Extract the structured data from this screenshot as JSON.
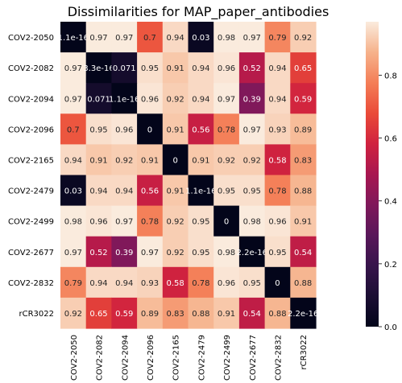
{
  "chart_data": {
    "type": "heatmap",
    "title": "Dissimilarities for MAP_paper_antibodies",
    "row_labels": [
      "COV2-2050",
      "COV2-2082",
      "COV2-2094",
      "COV2-2096",
      "COV2-2165",
      "COV2-2479",
      "COV2-2499",
      "COV2-2677",
      "COV2-2832",
      "rCR3022"
    ],
    "col_labels": [
      "COV2-2050",
      "COV2-2082",
      "COV2-2094",
      "COV2-2096",
      "COV2-2165",
      "COV2-2479",
      "COV2-2499",
      "COV2-2677",
      "COV2-2832",
      "rCR3022"
    ],
    "values": [
      [
        1.1e-16,
        0.97,
        0.97,
        0.7,
        0.94,
        0.03,
        0.98,
        0.97,
        0.79,
        0.92
      ],
      [
        0.97,
        3.3e-16,
        0.071,
        0.95,
        0.91,
        0.94,
        0.96,
        0.52,
        0.94,
        0.65
      ],
      [
        0.97,
        0.071,
        1.1e-16,
        0.96,
        0.92,
        0.94,
        0.97,
        0.39,
        0.94,
        0.59
      ],
      [
        0.7,
        0.95,
        0.96,
        0,
        0.91,
        0.56,
        0.78,
        0.97,
        0.93,
        0.89
      ],
      [
        0.94,
        0.91,
        0.92,
        0.91,
        0,
        0.91,
        0.92,
        0.92,
        0.58,
        0.83
      ],
      [
        0.03,
        0.94,
        0.94,
        0.56,
        0.91,
        1.1e-16,
        0.95,
        0.95,
        0.78,
        0.88
      ],
      [
        0.98,
        0.96,
        0.97,
        0.78,
        0.92,
        0.95,
        0,
        0.98,
        0.96,
        0.91
      ],
      [
        0.97,
        0.52,
        0.39,
        0.97,
        0.92,
        0.95,
        0.98,
        2.2e-16,
        0.95,
        0.54
      ],
      [
        0.79,
        0.94,
        0.94,
        0.93,
        0.58,
        0.78,
        0.96,
        0.95,
        0,
        0.88
      ],
      [
        0.92,
        0.65,
        0.59,
        0.89,
        0.83,
        0.88,
        0.91,
        0.54,
        0.88,
        2.2e-16
      ]
    ],
    "cell_labels": [
      [
        "1.1e-16",
        "0.97",
        "0.97",
        "0.7",
        "0.94",
        "0.03",
        "0.98",
        "0.97",
        "0.79",
        "0.92"
      ],
      [
        "0.97",
        "3.3e-16",
        "0.071",
        "0.95",
        "0.91",
        "0.94",
        "0.96",
        "0.52",
        "0.94",
        "0.65"
      ],
      [
        "0.97",
        "0.071",
        "1.1e-16",
        "0.96",
        "0.92",
        "0.94",
        "0.97",
        "0.39",
        "0.94",
        "0.59"
      ],
      [
        "0.7",
        "0.95",
        "0.96",
        "0",
        "0.91",
        "0.56",
        "0.78",
        "0.97",
        "0.93",
        "0.89"
      ],
      [
        "0.94",
        "0.91",
        "0.92",
        "0.91",
        "0",
        "0.91",
        "0.92",
        "0.92",
        "0.58",
        "0.83"
      ],
      [
        "0.03",
        "0.94",
        "0.94",
        "0.56",
        "0.91",
        "1.1e-16",
        "0.95",
        "0.95",
        "0.78",
        "0.88"
      ],
      [
        "0.98",
        "0.96",
        "0.97",
        "0.78",
        "0.92",
        "0.95",
        "0",
        "0.98",
        "0.96",
        "0.91"
      ],
      [
        "0.97",
        "0.52",
        "0.39",
        "0.97",
        "0.92",
        "0.95",
        "0.98",
        "2.2e-16",
        "0.95",
        "0.54"
      ],
      [
        "0.79",
        "0.94",
        "0.94",
        "0.93",
        "0.58",
        "0.78",
        "0.96",
        "0.95",
        "0",
        "0.88"
      ],
      [
        "0.92",
        "0.65",
        "0.59",
        "0.89",
        "0.83",
        "0.88",
        "0.91",
        "0.54",
        "0.88",
        "2.2e-16"
      ]
    ],
    "colorbar": {
      "range": [
        0,
        0.97
      ],
      "ticks": [
        0.0,
        0.2,
        0.4,
        0.6,
        0.8
      ],
      "tick_labels": [
        "0.0",
        "0.2",
        "0.4",
        "0.6",
        "0.8"
      ]
    },
    "colormap": "rocket",
    "grid": false,
    "legend": "colorbar-right"
  }
}
